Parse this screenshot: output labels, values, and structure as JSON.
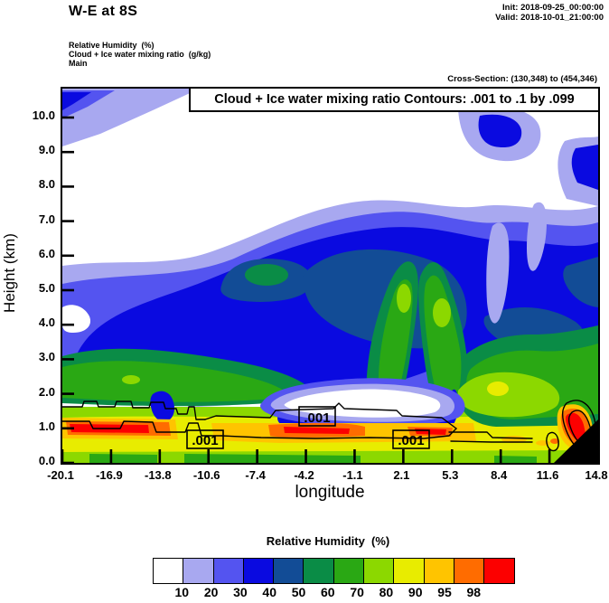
{
  "header": {
    "title": "W-E at 8S",
    "init_label": "Init: 2018-09-25_00:00:00",
    "valid_label": "Valid: 2018-10-01_21:00:00",
    "field_lines": [
      "Relative Humidity  (%)",
      "Cloud + Ice water mixing ratio  (g/kg)",
      "Main"
    ],
    "cross_section": "Cross-Section: (130,348) to (454,346)"
  },
  "plot": {
    "banner": "Cloud + Ice water mixing ratio Contours: .001 to .1 by .099",
    "contour_labels": [
      ".001",
      ".001",
      ".001"
    ]
  },
  "chart_data": {
    "type": "heatmap",
    "subtype": "filled-contour-vertical-cross-section",
    "title": "W-E at 8S",
    "xlabel": "longitude",
    "ylabel": "Height (km)",
    "x_ticks": [
      "-20.1",
      "-16.9",
      "-13.8",
      "-10.6",
      "-7.4",
      "-4.2",
      "-1.1",
      "2.1",
      "5.3",
      "8.4",
      "11.6",
      "14.8"
    ],
    "y_ticks": [
      "0.0",
      "1.0",
      "2.0",
      "3.0",
      "4.0",
      "5.0",
      "6.0",
      "7.0",
      "8.0",
      "9.0",
      "10.0"
    ],
    "xlim": [
      -20.1,
      14.8
    ],
    "ylim_km": [
      0,
      10.8
    ],
    "grid": false,
    "fill_field": {
      "name": "Relative Humidity",
      "units": "%",
      "levels": [
        10,
        20,
        30,
        40,
        50,
        60,
        70,
        80,
        90,
        95,
        98
      ]
    },
    "overlay_contours": {
      "name": "Cloud + Ice water mixing ratio",
      "units": "g/kg",
      "from": 0.001,
      "to": 0.1,
      "by": 0.099,
      "label_value": ".001"
    },
    "colorbar": {
      "title": "Relative Humidity  (%)",
      "position": "bottom",
      "labels": [
        "10",
        "20",
        "30",
        "40",
        "50",
        "60",
        "70",
        "80",
        "90",
        "95",
        "98"
      ],
      "colors": [
        "#FFFFFF",
        "#A8A8F0",
        "#5454F0",
        "#0A0AE0",
        "#124C96",
        "#0A8C46",
        "#2AA814",
        "#8CD800",
        "#E8EC00",
        "#FFC400",
        "#FF6C00",
        "#FC0000"
      ]
    }
  }
}
